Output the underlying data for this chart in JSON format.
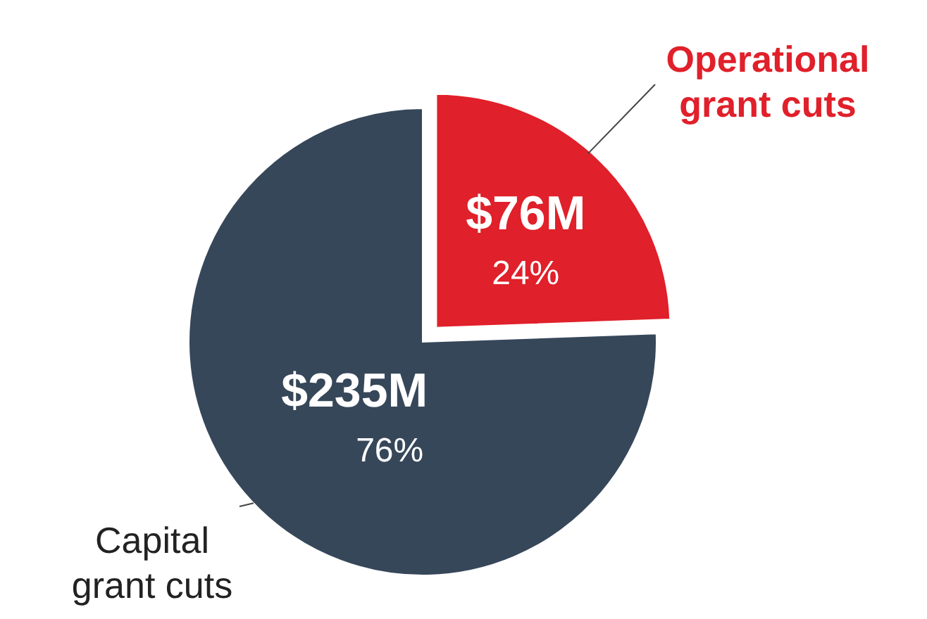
{
  "chart_data": {
    "type": "pie",
    "categories": [
      "Operational\ngrant cuts",
      "Capital\ngrant cuts"
    ],
    "values": [
      76,
      235
    ],
    "colors": [
      "#e0202a",
      "#37475a"
    ],
    "value_labels": [
      "$76M",
      "$235M"
    ],
    "annotations": [
      "24%",
      "76%"
    ]
  }
}
